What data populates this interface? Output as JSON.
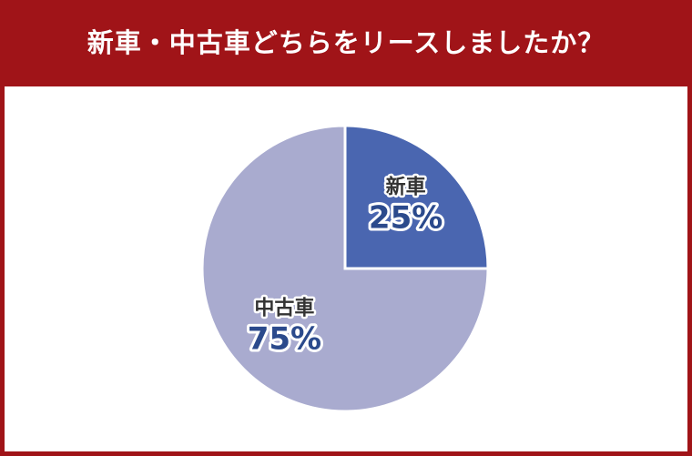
{
  "chart_data": {
    "type": "pie",
    "title": "新車・中古車どちらをリースしましたか？",
    "categories": [
      "新車",
      "中古車"
    ],
    "values": [
      25,
      75
    ],
    "value_labels": [
      "25%",
      "75%"
    ],
    "colors": [
      "#4a66b0",
      "#a9abcf"
    ]
  }
}
